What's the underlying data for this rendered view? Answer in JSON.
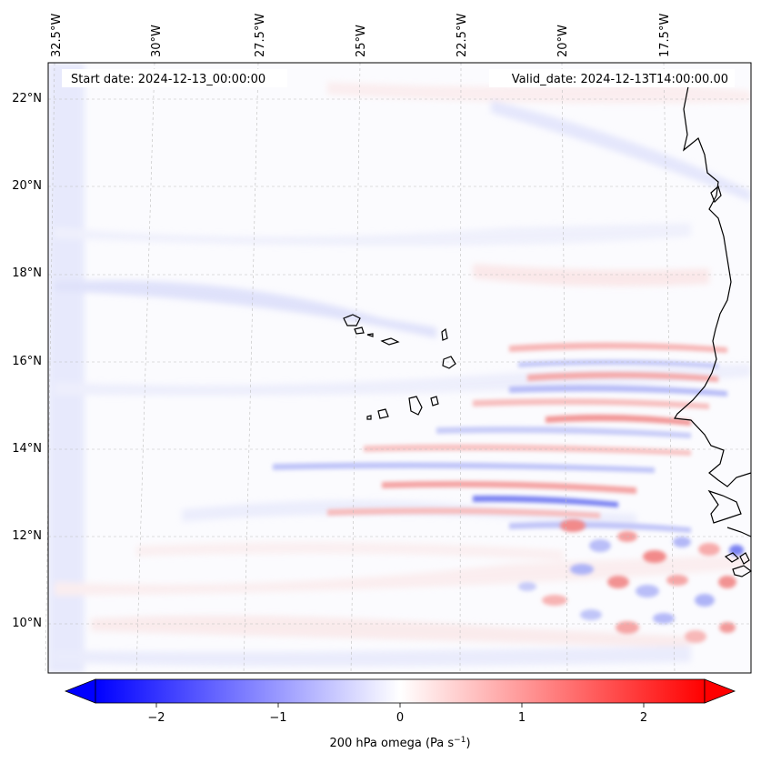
{
  "figure": {
    "start_date": "Start date: 2024-12-13_00:00:00",
    "valid_date": "Valid_date: 2024-12-13T14:00:00.00"
  },
  "map": {
    "lon_labels": [
      "32.5°W",
      "30°W",
      "27.5°W",
      "25°W",
      "22.5°W",
      "20°W",
      "17.5°W"
    ],
    "lat_labels": [
      "22°N",
      "20°N",
      "18°N",
      "16°N",
      "14°N",
      "12°N",
      "10°N"
    ],
    "colors": {
      "negative": "#0000ff",
      "zero": "#ffffff",
      "positive": "#ff0000",
      "coast": "#000000"
    }
  },
  "colorbar": {
    "ticks": [
      "−2",
      "−1",
      "0",
      "1",
      "2"
    ],
    "tick_values": [
      -2,
      -1,
      0,
      1,
      2
    ],
    "range": [
      -2.5,
      2.5
    ],
    "label_main": "200 hPa omega (Pa s",
    "label_sup": "−1",
    "label_end": ")"
  }
}
